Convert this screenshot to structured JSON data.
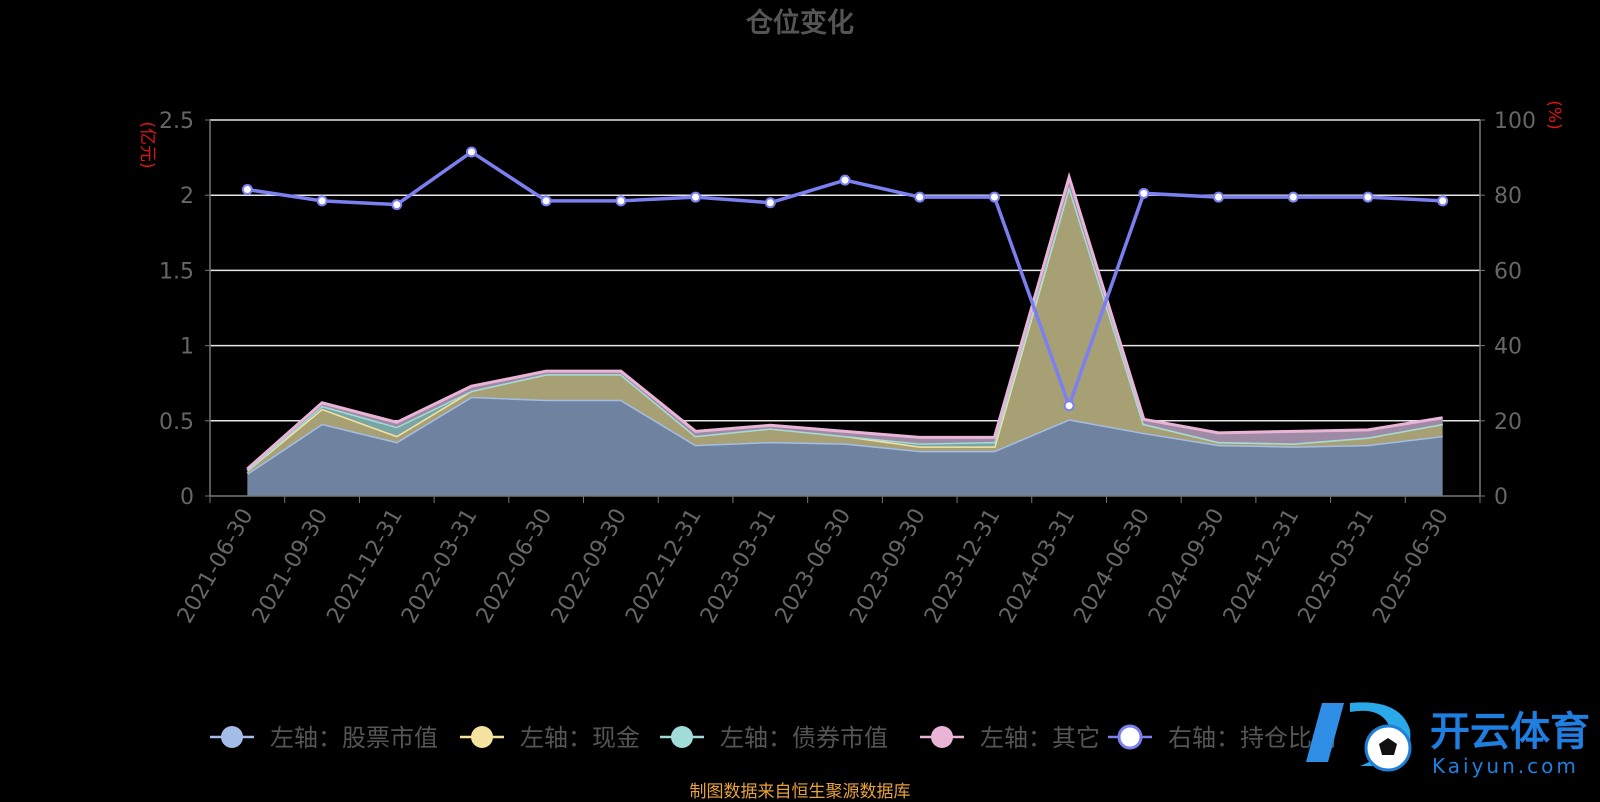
{
  "chart_data": {
    "type": "area",
    "title": "仓位变化",
    "left_axis_unit": "(亿元)",
    "right_axis_unit": "(%)",
    "categories": [
      "2021-06-30",
      "2021-09-30",
      "2021-12-31",
      "2022-03-31",
      "2022-06-30",
      "2022-09-30",
      "2022-12-31",
      "2023-03-31",
      "2023-06-30",
      "2023-09-30",
      "2023-12-31",
      "2024-03-31",
      "2024-06-30",
      "2024-09-30",
      "2024-12-31",
      "2025-03-31",
      "2025-06-30"
    ],
    "left_ylim": [
      0,
      2.5
    ],
    "left_ticks": [
      "0",
      "0.5",
      "1",
      "1.5",
      "2",
      "2.5"
    ],
    "right_ylim": [
      0,
      100
    ],
    "right_ticks": [
      "0",
      "20",
      "40",
      "60",
      "80",
      "100"
    ],
    "stacked": true,
    "grid": true,
    "legend_position": "bottom",
    "series": [
      {
        "name": "左轴：股票市值",
        "axis": "left",
        "color": "#a4bde6",
        "fill": "#6f82a0",
        "values": [
          0.15,
          0.48,
          0.36,
          0.66,
          0.64,
          0.64,
          0.34,
          0.36,
          0.35,
          0.3,
          0.3,
          0.51,
          0.42,
          0.34,
          0.33,
          0.34,
          0.4
        ]
      },
      {
        "name": "左轴：现金",
        "axis": "left",
        "color": "#f6e3a0",
        "fill": "#a8a075",
        "values": [
          0.02,
          0.1,
          0.04,
          0.04,
          0.17,
          0.17,
          0.06,
          0.09,
          0.05,
          0.03,
          0.03,
          1.55,
          0.06,
          0.02,
          0.02,
          0.05,
          0.08
        ]
      },
      {
        "name": "左轴：债券市值",
        "axis": "left",
        "color": "#a0dcd8",
        "fill": "#7aa5a5",
        "values": [
          0,
          0.02,
          0.06,
          0,
          0,
          0,
          0,
          0,
          0,
          0.02,
          0.03,
          0,
          0,
          0,
          0,
          0,
          0
        ]
      },
      {
        "name": "左轴：其它",
        "axis": "left",
        "color": "#eab4d6",
        "fill": "#9f8aa6",
        "values": [
          0.01,
          0.02,
          0.03,
          0.03,
          0.02,
          0.02,
          0.03,
          0.02,
          0.03,
          0.04,
          0.03,
          0.06,
          0.03,
          0.06,
          0.08,
          0.05,
          0.04
        ]
      },
      {
        "name": "右轴：持仓比例",
        "axis": "right",
        "color": "#7b7ff0",
        "values": [
          81.5,
          78.5,
          77.5,
          91.5,
          78.5,
          78.5,
          79.5,
          78.0,
          84.0,
          79.5,
          79.5,
          24.0,
          80.5,
          79.5,
          79.5,
          79.5,
          78.5
        ]
      }
    ]
  },
  "legend": [
    {
      "label": "左轴：股票市值",
      "color": "#a4bde6"
    },
    {
      "label": "左轴：现金",
      "color": "#f6e3a0"
    },
    {
      "label": "左轴：债券市值",
      "color": "#a0dcd8"
    },
    {
      "label": "左轴：其它",
      "color": "#eab4d6"
    },
    {
      "label": "右轴：持仓比例",
      "color": "#7b7ff0"
    }
  ],
  "watermark": {
    "brand": "开云体育",
    "domain": "Kaiyun.com"
  },
  "source_note": "制图数据来自恒生聚源数据库"
}
